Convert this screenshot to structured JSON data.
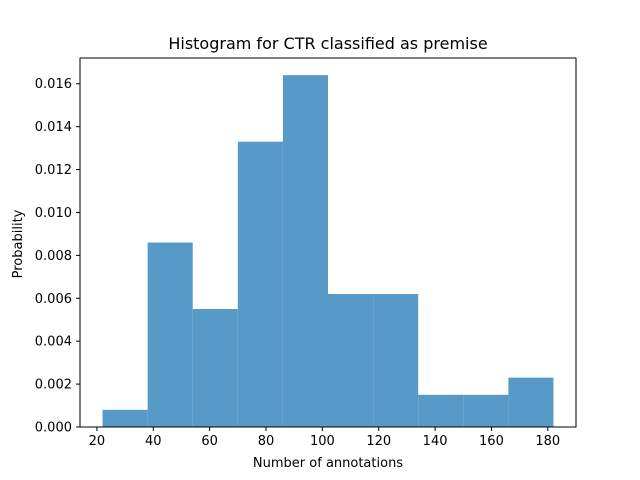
{
  "chart_data": {
    "type": "bar",
    "title": "Histogram for CTR classified as premise",
    "xlabel": "Number of annotations",
    "ylabel": "Probability",
    "bin_edges": [
      22,
      38,
      54,
      70,
      86,
      102,
      118,
      134,
      150,
      166,
      182
    ],
    "values": [
      0.0008,
      0.0086,
      0.0055,
      0.0133,
      0.0164,
      0.0062,
      0.0062,
      0.0015,
      0.0015,
      0.0023
    ],
    "xlim": [
      14,
      190
    ],
    "ylim": [
      0,
      0.0172
    ],
    "xticks": [
      20,
      40,
      60,
      80,
      100,
      120,
      140,
      160,
      180
    ],
    "yticks": [
      0.0,
      0.002,
      0.004,
      0.006,
      0.008,
      0.01,
      0.012,
      0.014,
      0.016
    ],
    "xtick_labels": [
      "20",
      "40",
      "60",
      "80",
      "100",
      "120",
      "140",
      "160",
      "180"
    ],
    "ytick_labels": [
      "0.000",
      "0.002",
      "0.004",
      "0.006",
      "0.008",
      "0.010",
      "0.012",
      "0.014",
      "0.016"
    ],
    "bar_color": "#5799c7",
    "grid": false,
    "legend": "none"
  }
}
